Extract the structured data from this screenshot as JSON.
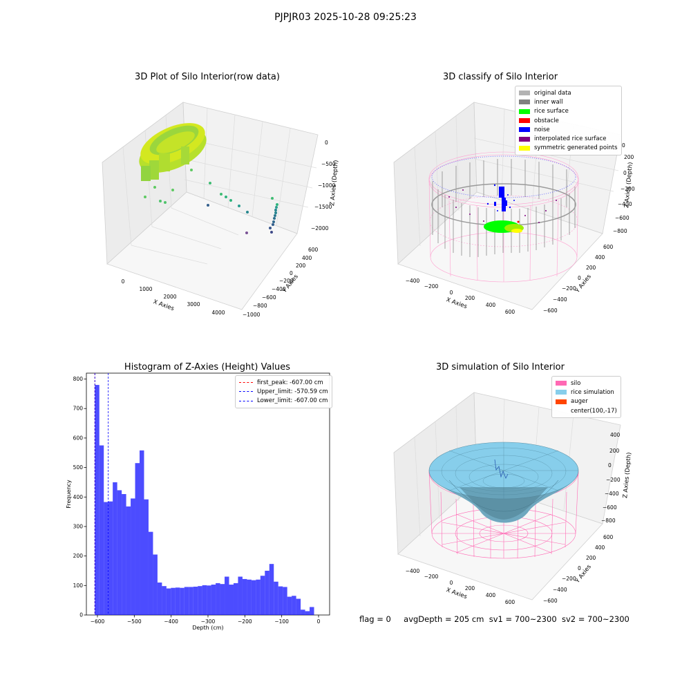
{
  "figure": {
    "suptitle": "PJPJR03 2025-10-28 09:25:23"
  },
  "panels": {
    "raw": {
      "title": "3D Plot of Silo Interior(row data)",
      "x_label": "X Axies",
      "y_label": "Y Axies",
      "z_label": "Z Axies (Depth)",
      "x_ticks": [
        "0",
        "1000",
        "2000",
        "3000",
        "4000"
      ],
      "y_ticks": [
        "600",
        "400",
        "200",
        "0",
        "−200",
        "−400",
        "−600",
        "−800",
        "−1000"
      ],
      "z_ticks": [
        "0",
        "−500",
        "−1000",
        "−1500",
        "−2000"
      ]
    },
    "classify": {
      "title": "3D classify of Silo Interior",
      "x_label": "X Axies",
      "y_label": "Y Axies",
      "z_label": "Z Axies (Depth)",
      "x_ticks": [
        "−400",
        "−200",
        "0",
        "200",
        "400",
        "600"
      ],
      "y_ticks": [
        "600",
        "400",
        "200",
        "0",
        "−200",
        "−400",
        "−600"
      ],
      "z_ticks": [
        "200",
        "0",
        "−200",
        "−400",
        "−600",
        "−800"
      ],
      "z_top_partial": "0",
      "legend": [
        {
          "label": "original data",
          "color": "#b3b3b3"
        },
        {
          "label": "inner wall",
          "color": "#808080"
        },
        {
          "label": "rice surface",
          "color": "#00ff00"
        },
        {
          "label": "obstacle",
          "color": "#ff0000"
        },
        {
          "label": "noise",
          "color": "#0000ff"
        },
        {
          "label": "interpolated rice surface",
          "color": "#800080"
        },
        {
          "label": "symmetric generated points",
          "color": "#ffff00"
        }
      ]
    },
    "simulation": {
      "title": "3D simulation of Silo Interior",
      "x_label": "X Axies",
      "y_label": "Y Axies",
      "z_label": "Z Axies (Depth)",
      "x_ticks": [
        "−400",
        "−200",
        "0",
        "200",
        "400",
        "600"
      ],
      "y_ticks": [
        "600",
        "400",
        "200",
        "0",
        "−200",
        "−400",
        "−600"
      ],
      "z_ticks": [
        "400",
        "200",
        "0",
        "−200",
        "−400",
        "−600",
        "−800"
      ],
      "legend": [
        {
          "label": "silo",
          "color": "#ff69b4"
        },
        {
          "label": "rice simulation",
          "color": "#87ceeb"
        },
        {
          "label": "auger",
          "color": "#ff4500"
        },
        {
          "label": "center(100,-17)",
          "color": ""
        }
      ]
    }
  },
  "chart_data": {
    "type": "bar",
    "title": "Histogram of Z-Axies (Height) Values",
    "xlabel": "Depth (cm)",
    "ylabel": "Frequency",
    "xlim": [
      -630,
      30
    ],
    "ylim": [
      0,
      820
    ],
    "x_ticks": [
      -600,
      -500,
      -400,
      -300,
      -200,
      -100,
      0
    ],
    "y_ticks": [
      0,
      100,
      200,
      300,
      400,
      500,
      600,
      700,
      800
    ],
    "bin_start": -607,
    "bin_width": 12.14,
    "values": [
      780,
      575,
      383,
      385,
      450,
      423,
      410,
      368,
      395,
      515,
      558,
      392,
      282,
      205,
      110,
      98,
      90,
      92,
      93,
      92,
      95,
      95,
      96,
      98,
      101,
      100,
      103,
      108,
      105,
      130,
      103,
      108,
      130,
      122,
      120,
      118,
      120,
      133,
      150,
      173,
      113,
      97,
      95,
      62,
      65,
      55,
      18,
      13,
      27
    ],
    "bar_color": "#0000ff",
    "vlines": [
      {
        "label": "first_peak: -607.00 cm",
        "x": -607.0,
        "color": "#ff0000"
      },
      {
        "label": "Upper_limit: -570.59 cm",
        "x": -570.59,
        "color": "#0000ff"
      },
      {
        "label": "Lower_limit: -607.00 cm",
        "x": -607.0,
        "color": "#0000ff"
      }
    ],
    "legend_position": "top-right"
  },
  "footer": {
    "flag": "flag = 0",
    "avg": "avgDepth = 205 cm",
    "sv1": "sv1 = 700~2300",
    "sv2": "sv2 = 700~2300"
  }
}
